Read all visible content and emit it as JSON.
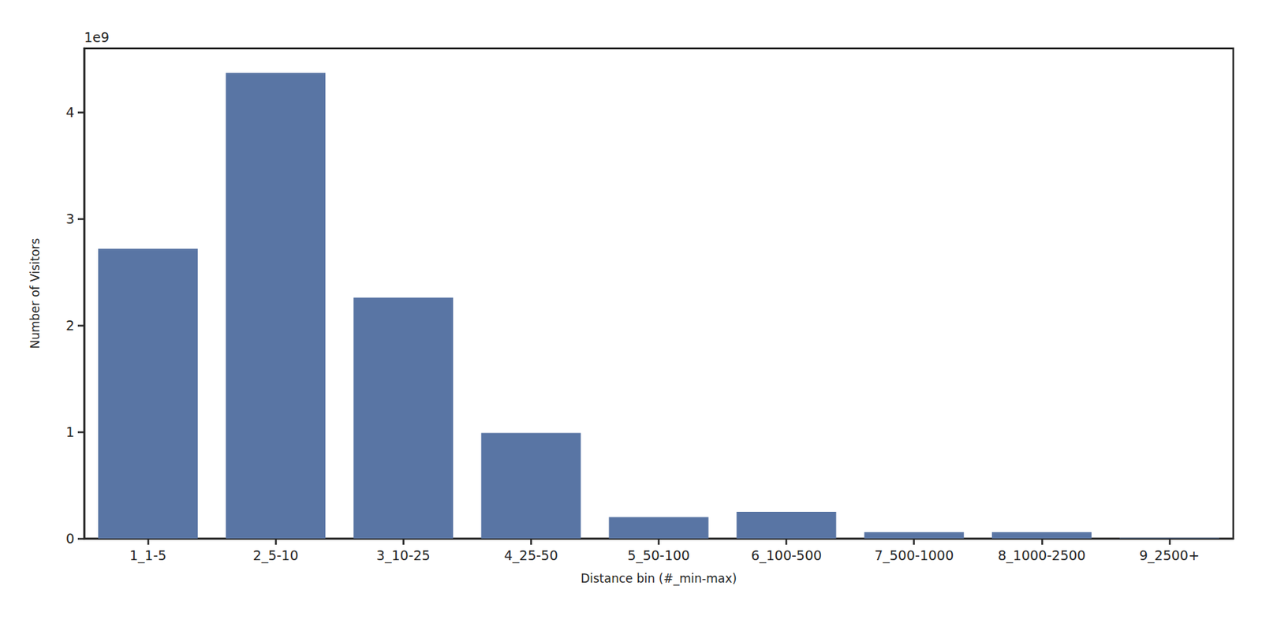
{
  "chart_data": {
    "type": "bar",
    "x_label": "Distance bin (#_min-max)",
    "y_label": "Number of Visitors",
    "annotations": [
      "1e9"
    ],
    "categories": [
      "1_1-5",
      "2_5-10",
      "3_10-25",
      "4_25-50",
      "5_50-100",
      "6_100-500",
      "7_500-1000",
      "8_1000-2500",
      "9_2500+"
    ],
    "values": [
      2.72,
      4.37,
      2.26,
      0.99,
      0.2,
      0.25,
      0.06,
      0.06,
      0.005
    ],
    "color": "#5975a4",
    "ylim": [
      0,
      4.6
    ],
    "yticks": [
      0,
      1,
      2,
      3,
      4
    ],
    "grid": false
  }
}
